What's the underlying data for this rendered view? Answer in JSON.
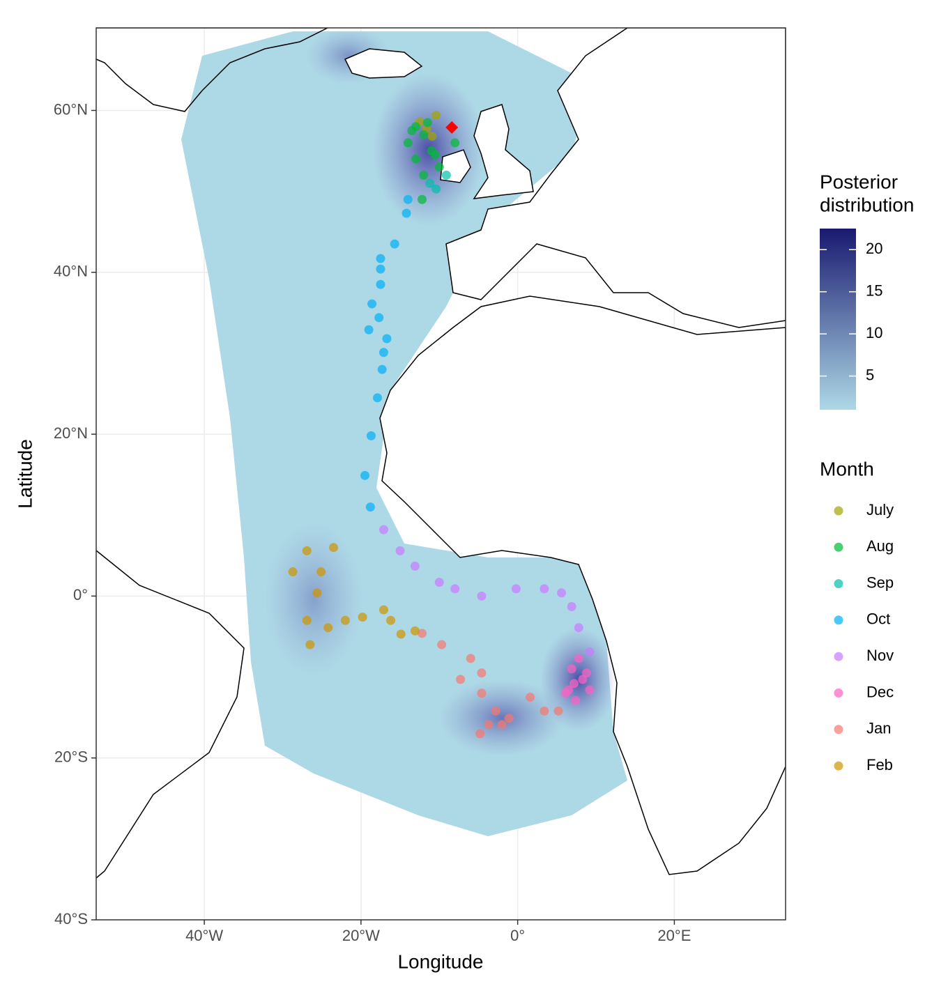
{
  "chart_data": {
    "type": "scatter",
    "x_label": "Longitude",
    "y_label": "Latitude",
    "xlim": [
      -53.8,
      34.2
    ],
    "ylim": [
      -40,
      70.2
    ],
    "xticks": [
      {
        "value": -40,
        "label": "40°W"
      },
      {
        "value": -20,
        "label": "20°W"
      },
      {
        "value": 0,
        "label": "0°"
      },
      {
        "value": 20,
        "label": "20°E"
      }
    ],
    "yticks": [
      {
        "value": -40,
        "label": "40°S"
      },
      {
        "value": -20,
        "label": "20°S"
      },
      {
        "value": 0,
        "label": "0°"
      },
      {
        "value": 20,
        "label": "20°N"
      },
      {
        "value": 40,
        "label": "40°N"
      },
      {
        "value": 60,
        "label": "60°N"
      }
    ],
    "grid": true,
    "legend_title": "Month",
    "series": [
      {
        "name": "July",
        "color": "#a3a500",
        "x": [
          -10.4,
          -11.6,
          -12.5,
          -10.9
        ],
        "y": [
          59.4,
          57.7,
          58.6,
          56.8
        ]
      },
      {
        "name": "Aug",
        "color": "#00ba38",
        "x": [
          -13,
          -12,
          -14,
          -11,
          -13,
          -10,
          -12,
          -8,
          -12.2,
          -11.5,
          -13.5,
          -10.5
        ],
        "y": [
          58,
          57,
          56,
          55,
          54,
          53,
          52,
          56,
          49,
          58.5,
          57.5,
          54.5
        ]
      },
      {
        "name": "Sep",
        "color": "#00c1a9",
        "x": [
          -10.4,
          -9.1,
          -11.2
        ],
        "y": [
          50.3,
          52,
          51
        ]
      },
      {
        "name": "Oct",
        "color": "#00b0f6",
        "x": [
          -14,
          -14.2,
          -15.7,
          -17.5,
          -17.5,
          -17.5,
          -18.6,
          -17.7,
          -19,
          -16.7,
          -17.1,
          -17.3,
          -17.9,
          -18.7,
          -19.5,
          -18.8
        ],
        "y": [
          49,
          47.3,
          43.5,
          41.7,
          40.4,
          38.5,
          36.1,
          34.4,
          32.9,
          31.8,
          30.1,
          28,
          24.5,
          19.8,
          14.9,
          11
        ]
      },
      {
        "name": "Nov",
        "color": "#c77cff",
        "x": [
          -17.1,
          -15,
          -13.1,
          -10,
          -8,
          -4.6,
          -0.2,
          3.4,
          5.6,
          6.9,
          7.8,
          9.2
        ],
        "y": [
          8.2,
          5.6,
          3.7,
          1.7,
          0.9,
          0,
          0.9,
          0.9,
          0.4,
          -1.3,
          -3.9,
          -6.9
        ]
      },
      {
        "name": "Dec",
        "color": "#ff61c3",
        "x": [
          7.8,
          6.9,
          8.3,
          6.5,
          9.2,
          7.4,
          6.1,
          8.8,
          7.2
        ],
        "y": [
          -7.7,
          -9,
          -10.3,
          -11.6,
          -11.6,
          -12.9,
          -12,
          -9.5,
          -10.8
        ]
      },
      {
        "name": "Jan",
        "color": "#f8766d",
        "x": [
          -12.2,
          -9.7,
          -6,
          -4.6,
          -7.3,
          -4.6,
          -2.8,
          -3.7,
          -1.1,
          1.6,
          3.4,
          5.2,
          -4.8,
          -2
        ],
        "y": [
          -4.6,
          -6,
          -7.7,
          -9.5,
          -10.3,
          -12,
          -14.2,
          -15.9,
          -15.1,
          -12.5,
          -14.2,
          -14.2,
          -17,
          -15.9
        ]
      },
      {
        "name": "Feb",
        "color": "#cd9600",
        "x": [
          -26.9,
          -28.7,
          -25.1,
          -23.5,
          -25.6,
          -26.9,
          -26.5,
          -24.2,
          -22,
          -19.8,
          -17.1,
          -16.2,
          -14.9,
          -13.1
        ],
        "y": [
          5.6,
          3,
          3,
          6,
          0.4,
          -3,
          -6,
          -3.9,
          -3,
          -2.6,
          -1.7,
          -3,
          -4.7,
          -4.3
        ]
      }
    ],
    "marker": {
      "x": -8.4,
      "y": 57.9,
      "color": "#ff0000"
    },
    "colorbar": {
      "title": [
        "Posterior",
        "distribution"
      ],
      "range": [
        1,
        22.5
      ],
      "ticks": [
        5,
        10,
        15,
        20
      ],
      "colors": [
        "#add8e6",
        "#191970"
      ]
    }
  }
}
